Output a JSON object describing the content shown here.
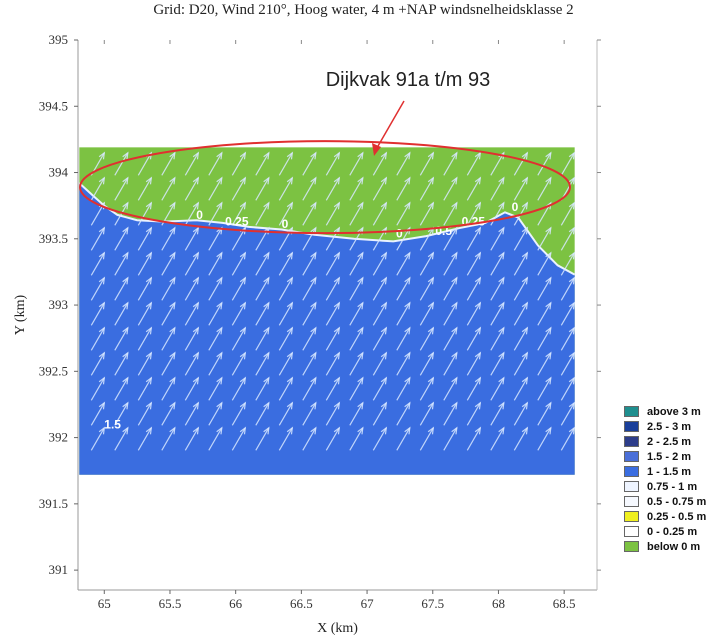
{
  "colors": {
    "water": "#3a6de0",
    "land": "#7cc242",
    "annotation": "#e03030",
    "arrows": "#d8e8ff"
  },
  "chart_data": {
    "type": "heatmap",
    "title": "Grid: D20, Wind 210°, Hoog water, 4 m +NAP windsnelheidsklasse 2",
    "xlabel": "X (km)",
    "ylabel": "Y (km)",
    "xlim": [
      64.8,
      68.75
    ],
    "ylim": [
      390.85,
      395
    ],
    "x_ticks": [
      "65",
      "65.5",
      "66",
      "66.5",
      "67",
      "67.5",
      "68",
      "68.5"
    ],
    "y_ticks": [
      "395",
      "394.5",
      "394",
      "393.5",
      "393",
      "392.5",
      "392",
      "391.5",
      "391"
    ],
    "grid_extent": {
      "x": [
        64.81,
        68.58
      ],
      "y": [
        391.72,
        394.19
      ]
    },
    "shoreline_y_km": [
      [
        64.81,
        393.92
      ],
      [
        64.92,
        393.82
      ],
      [
        65.0,
        393.75
      ],
      [
        65.1,
        393.68
      ],
      [
        65.25,
        393.64
      ],
      [
        65.45,
        393.63
      ],
      [
        65.7,
        393.64
      ],
      [
        65.9,
        393.62
      ],
      [
        66.1,
        393.59
      ],
      [
        66.35,
        393.57
      ],
      [
        66.6,
        393.53
      ],
      [
        66.9,
        393.5
      ],
      [
        67.2,
        393.48
      ],
      [
        67.45,
        393.52
      ],
      [
        67.7,
        393.58
      ],
      [
        67.9,
        393.62
      ],
      [
        68.05,
        393.7
      ],
      [
        68.15,
        393.66
      ],
      [
        68.3,
        393.45
      ],
      [
        68.45,
        393.3
      ],
      [
        68.58,
        393.23
      ]
    ],
    "wind_direction_deg": 210,
    "contour_labels": [
      {
        "text": "0",
        "x": 65.7,
        "y": 393.65
      },
      {
        "text": "0.25",
        "x": 65.92,
        "y": 393.6
      },
      {
        "text": "0",
        "x": 66.35,
        "y": 393.58
      },
      {
        "text": "0",
        "x": 67.22,
        "y": 393.51
      },
      {
        "text": "0.5",
        "x": 67.52,
        "y": 393.53
      },
      {
        "text": "0.25",
        "x": 67.72,
        "y": 393.6
      },
      {
        "text": "0",
        "x": 68.1,
        "y": 393.71
      },
      {
        "text": "1.5",
        "x": 65.0,
        "y": 392.07
      }
    ],
    "legend": [
      {
        "label": "above 3 m",
        "color": "#1f8f8f"
      },
      {
        "label": "2.5 - 3 m",
        "color": "#1a3f9a"
      },
      {
        "label": "2 - 2.5 m",
        "color": "#2d3d8a"
      },
      {
        "label": "1.5 - 2 m",
        "color": "#4a6fd8"
      },
      {
        "label": "1 - 1.5 m",
        "color": "#3a6de0"
      },
      {
        "label": "0.75 - 1 m",
        "color": "#eef4ff"
      },
      {
        "label": "0.5 - 0.75 m",
        "color": "#f6f9ff"
      },
      {
        "label": "0.25 - 0.5 m",
        "color": "#f0f020"
      },
      {
        "label": "0 - 0.25 m",
        "color": "#ffffff"
      },
      {
        "label": "below 0 m",
        "color": "#7cc242"
      }
    ],
    "annotation": {
      "text": "Dijkvak 91a t/m 93",
      "ellipse_center": [
        66.68,
        393.89
      ]
    },
    "legend_position": "right-bottom"
  }
}
